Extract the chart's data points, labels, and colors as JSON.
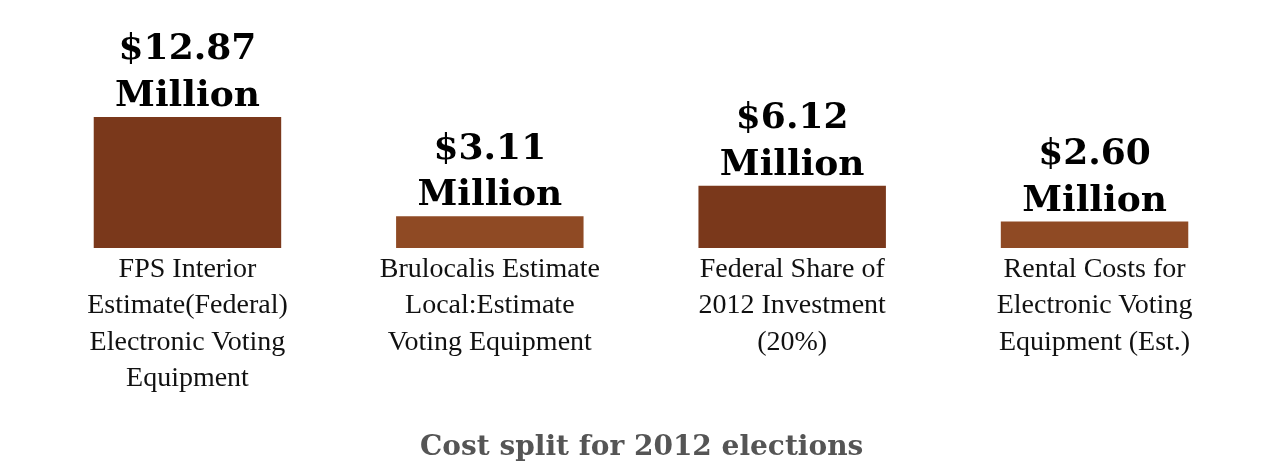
{
  "chart_data": {
    "type": "bar",
    "title": "Cost split for 2012 elections",
    "categories": [
      "FPS Interior Estimate(Federal) Electronic Voting Equipment",
      "Brulocalis Estimate Local:Estimate Voting Equipment",
      "Federal Share of 2012 Investment (20%)",
      "Rental Costs for Electronic Voting Equipment (Est.)"
    ],
    "values": [
      12.87,
      3.11,
      6.12,
      2.6
    ],
    "colors": [
      "#7a381b",
      "#8f4a24",
      "#7a381b",
      "#8f4a24"
    ],
    "value_labels": [
      "$12.87 Million",
      "$3.11 Million",
      "$6.12 Million",
      "$2.60 Million"
    ],
    "legend": false
  }
}
